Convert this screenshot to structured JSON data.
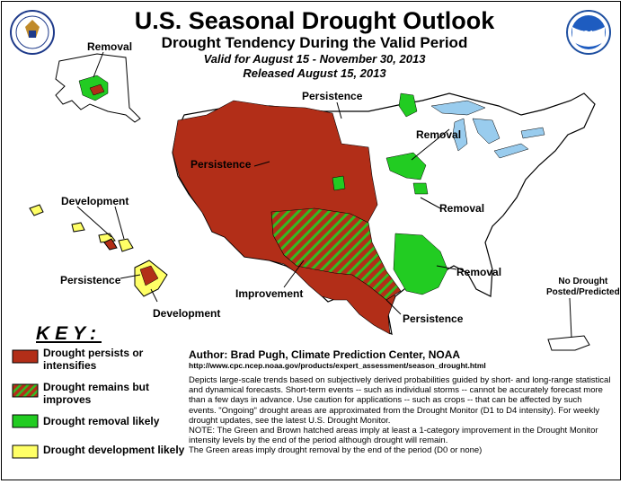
{
  "header": {
    "title": "U.S. Seasonal Drought Outlook",
    "subtitle": "Drought Tendency During the Valid Period",
    "valid": "Valid for August 15 - November 30, 2013",
    "released": "Released August 15, 2013"
  },
  "logos": {
    "left_seal": "commerce-seal-icon",
    "right_logo": "noaa-logo-icon",
    "noaa_text": "NOAA"
  },
  "colors": {
    "persist": "#b22e18",
    "improve_base": "#b22e18",
    "improve_hatch": "#33bb22",
    "removal": "#22cc22",
    "development": "#ffff66",
    "water": "#99ccee",
    "land": "#ffffff"
  },
  "map_labels": {
    "removal_alaska": "Removal",
    "persistence_n": "Persistence",
    "removal_ne": "Removal",
    "persistence_w": "Persistence",
    "development_hi": "Development",
    "removal_e": "Removal",
    "persistence_hi": "Persistence",
    "removal_se": "Removal",
    "improvement": "Improvement",
    "persistence_tx": "Persistence",
    "development_hi2": "Development",
    "no_drought": "No Drought\nPosted/Predicted"
  },
  "key": {
    "title": "KEY:",
    "items": [
      {
        "label": "Drought persists or intensifies"
      },
      {
        "label": "Drought remains but improves"
      },
      {
        "label": "Drought removal likely"
      },
      {
        "label": "Drought development likely"
      }
    ]
  },
  "author": "Author: Brad Pugh, Climate Prediction Center, NOAA",
  "url": "http://www.cpc.ncep.noaa.gov/products/expert_assessment/season_drought.html",
  "description": [
    "Depicts large-scale trends based on subjectively derived probabilities guided by short- and long-range statistical and dynamical forecasts. Short-term events -- such as individual storms -- cannot be accurately forecast more than a few days in advance. Use caution for applications -- such as crops -- that can be affected by such events. \"Ongoing\" drought areas are approximated from the Drought Monitor (D1 to D4 intensity). For weekly drought updates, see the latest U.S. Drought Monitor.",
    "NOTE: The Green and Brown hatched areas imply at least a 1-category improvement in the Drought Monitor intensity levels by the end of the period although drought will remain.",
    "The Green areas imply drought removal by the end of the period (D0 or none)"
  ]
}
